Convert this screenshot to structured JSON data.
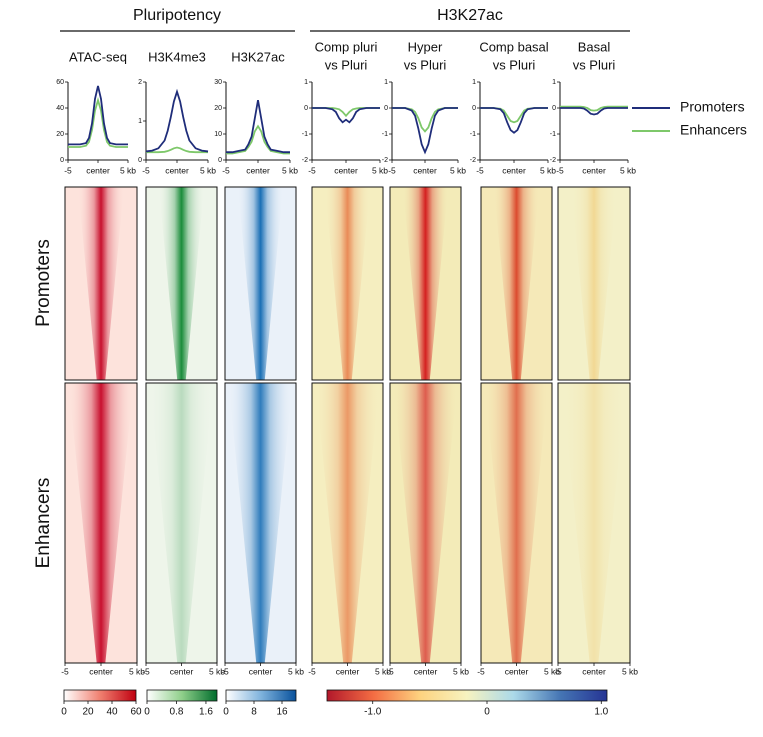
{
  "groups": [
    {
      "title": "Pluripotency"
    },
    {
      "title": "H3K27ac"
    }
  ],
  "row_labels": [
    "Promoters",
    "Enhancers"
  ],
  "chart_data": [
    {
      "type": "line",
      "title": [
        "ATAC-seq"
      ],
      "x": [
        -5,
        -4,
        -3,
        -2,
        -1.5,
        -1,
        -0.5,
        0,
        0.5,
        1,
        1.5,
        2,
        3,
        4,
        5
      ],
      "xlim": [
        -5,
        5
      ],
      "xticks": [
        {
          "value": -5,
          "label": "-5"
        },
        {
          "value": 0,
          "label": "center"
        },
        {
          "value": 5,
          "label": "5 kb"
        }
      ],
      "ylim": [
        0,
        60
      ],
      "yticks": [
        0,
        20,
        40,
        60
      ],
      "series": [
        {
          "name": "Promoters",
          "color": "#1f2d7a",
          "values": [
            12,
            12,
            12,
            13,
            17,
            28,
            47,
            57,
            47,
            28,
            17,
            13,
            12,
            12,
            12
          ]
        },
        {
          "name": "Enhancers",
          "color": "#7ec86a",
          "values": [
            10,
            10,
            10,
            11,
            14,
            23,
            38,
            46,
            38,
            23,
            14,
            11,
            10,
            10,
            10
          ]
        }
      ]
    },
    {
      "type": "line",
      "title": [
        "H3K4me3"
      ],
      "x": [
        -5,
        -4,
        -3,
        -2,
        -1.5,
        -1,
        -0.5,
        0,
        0.5,
        1,
        1.5,
        2,
        3,
        4,
        5
      ],
      "xlim": [
        -5,
        5
      ],
      "xticks": [
        {
          "value": -5,
          "label": "-5"
        },
        {
          "value": 0,
          "label": "center"
        },
        {
          "value": 5,
          "label": "5 kb"
        }
      ],
      "ylim": [
        0,
        2
      ],
      "yticks": [
        0,
        1,
        2
      ],
      "series": [
        {
          "name": "Promoters",
          "color": "#1f2d7a",
          "values": [
            0.22,
            0.24,
            0.3,
            0.5,
            0.75,
            1.1,
            1.5,
            1.75,
            1.5,
            1.1,
            0.75,
            0.5,
            0.3,
            0.24,
            0.22
          ]
        },
        {
          "name": "Enhancers",
          "color": "#7ec86a",
          "values": [
            0.2,
            0.2,
            0.2,
            0.21,
            0.23,
            0.26,
            0.3,
            0.32,
            0.3,
            0.26,
            0.23,
            0.21,
            0.2,
            0.2,
            0.2
          ]
        }
      ]
    },
    {
      "type": "line",
      "title": [
        "H3K27ac"
      ],
      "x": [
        -5,
        -4,
        -3,
        -2,
        -1.5,
        -1,
        -0.5,
        0,
        0.5,
        1,
        1.5,
        2,
        3,
        4,
        5
      ],
      "xlim": [
        -5,
        5
      ],
      "xticks": [
        {
          "value": -5,
          "label": "-5"
        },
        {
          "value": 0,
          "label": "center"
        },
        {
          "value": 5,
          "label": "5 kb"
        }
      ],
      "ylim": [
        0,
        30
      ],
      "yticks": [
        0,
        10,
        20,
        30
      ],
      "series": [
        {
          "name": "Promoters",
          "color": "#1f2d7a",
          "values": [
            3,
            3,
            3.5,
            4,
            6,
            9,
            16,
            23,
            16,
            9,
            6,
            4,
            3.5,
            3,
            3
          ]
        },
        {
          "name": "Enhancers",
          "color": "#7ec86a",
          "values": [
            2.5,
            2.5,
            3,
            3.5,
            5,
            7,
            11,
            13,
            11,
            7,
            5,
            3.5,
            3,
            2.5,
            2.5
          ]
        }
      ]
    },
    {
      "type": "line",
      "title": [
        "Comp pluri",
        "vs Pluri"
      ],
      "x": [
        -5,
        -4,
        -3,
        -2,
        -1.5,
        -1,
        -0.5,
        0,
        0.5,
        1,
        1.5,
        2,
        3,
        4,
        5
      ],
      "xlim": [
        -5,
        5
      ],
      "xticks": [
        {
          "value": -5,
          "label": "-5"
        },
        {
          "value": 0,
          "label": "center"
        },
        {
          "value": 5,
          "label": "5 kb"
        }
      ],
      "ylim": [
        -2,
        1
      ],
      "yticks": [
        -2,
        -1,
        0,
        1
      ],
      "series": [
        {
          "name": "Promoters",
          "color": "#1f2d7a",
          "values": [
            0,
            0,
            0,
            -0.05,
            -0.15,
            -0.4,
            -0.55,
            -0.45,
            -0.55,
            -0.4,
            -0.15,
            -0.05,
            0,
            0,
            0
          ]
        },
        {
          "name": "Enhancers",
          "color": "#7ec86a",
          "values": [
            0,
            0,
            0,
            0,
            -0.02,
            -0.05,
            -0.15,
            -0.3,
            -0.15,
            -0.05,
            -0.02,
            0,
            0,
            0,
            0
          ]
        }
      ]
    },
    {
      "type": "line",
      "title": [
        "Hyper",
        "vs Pluri"
      ],
      "x": [
        -5,
        -4,
        -3,
        -2,
        -1.5,
        -1,
        -0.5,
        0,
        0.5,
        1,
        1.5,
        2,
        3,
        4,
        5
      ],
      "xlim": [
        -5,
        5
      ],
      "xticks": [
        {
          "value": -5,
          "label": "-5"
        },
        {
          "value": 0,
          "label": "center"
        },
        {
          "value": 5,
          "label": "5 kb"
        }
      ],
      "ylim": [
        -2,
        1
      ],
      "yticks": [
        -2,
        -1,
        0,
        1
      ],
      "series": [
        {
          "name": "Promoters",
          "color": "#1f2d7a",
          "values": [
            0,
            0,
            0,
            -0.1,
            -0.3,
            -0.8,
            -1.4,
            -1.7,
            -1.4,
            -0.8,
            -0.3,
            -0.1,
            0,
            0,
            0
          ]
        },
        {
          "name": "Enhancers",
          "color": "#7ec86a",
          "values": [
            0,
            0,
            0,
            -0.05,
            -0.15,
            -0.4,
            -0.75,
            -0.9,
            -0.75,
            -0.4,
            -0.15,
            -0.05,
            0,
            0,
            0
          ]
        }
      ]
    },
    {
      "type": "line",
      "title": [
        "Comp basal",
        "vs Pluri"
      ],
      "x": [
        -5,
        -4,
        -3,
        -2,
        -1.5,
        -1,
        -0.5,
        0,
        0.5,
        1,
        1.5,
        2,
        3,
        4,
        5
      ],
      "xlim": [
        -5,
        5
      ],
      "xticks": [
        {
          "value": -5,
          "label": "-5"
        },
        {
          "value": 0,
          "label": "center"
        },
        {
          "value": 5,
          "label": "5 kb"
        }
      ],
      "ylim": [
        -2,
        1
      ],
      "yticks": [
        -2,
        -1,
        0,
        1
      ],
      "series": [
        {
          "name": "Promoters",
          "color": "#1f2d7a",
          "values": [
            0,
            0,
            0,
            -0.05,
            -0.2,
            -0.55,
            -0.85,
            -0.95,
            -0.85,
            -0.55,
            -0.2,
            -0.05,
            0,
            0,
            0
          ]
        },
        {
          "name": "Enhancers",
          "color": "#7ec86a",
          "values": [
            0,
            0,
            0,
            -0.03,
            -0.1,
            -0.3,
            -0.5,
            -0.55,
            -0.5,
            -0.3,
            -0.1,
            -0.03,
            0,
            0,
            0
          ]
        }
      ]
    },
    {
      "type": "line",
      "title": [
        "Basal",
        "vs Pluri"
      ],
      "x": [
        -5,
        -4,
        -3,
        -2,
        -1.5,
        -1,
        -0.5,
        0,
        0.5,
        1,
        1.5,
        2,
        3,
        4,
        5
      ],
      "xlim": [
        -5,
        5
      ],
      "xticks": [
        {
          "value": -5,
          "label": "-5"
        },
        {
          "value": 0,
          "label": "center"
        },
        {
          "value": 5,
          "label": "5 kb"
        }
      ],
      "ylim": [
        -2,
        1
      ],
      "yticks": [
        -2,
        -1,
        0,
        1
      ],
      "series": [
        {
          "name": "Promoters",
          "color": "#1f2d7a",
          "values": [
            0,
            0,
            0,
            0,
            -0.02,
            -0.1,
            -0.22,
            -0.25,
            -0.22,
            -0.1,
            -0.02,
            0,
            0,
            0,
            0
          ]
        },
        {
          "name": "Enhancers",
          "color": "#7ec86a",
          "values": [
            0.05,
            0.05,
            0.05,
            0.05,
            0.04,
            0,
            -0.08,
            -0.1,
            -0.08,
            0,
            0.04,
            0.05,
            0.05,
            0.05,
            0.05
          ]
        }
      ]
    }
  ],
  "colorbars": [
    {
      "lim": [
        0,
        60
      ],
      "ticks": [
        0,
        20,
        40,
        60
      ],
      "colors": [
        "#ffffff",
        "#f08070",
        "#c00010"
      ]
    },
    {
      "lim": [
        0,
        1.9
      ],
      "ticks": [
        0,
        0.8,
        1.6
      ],
      "colors": [
        "#ffffff",
        "#8fcf8a",
        "#006d2c"
      ]
    },
    {
      "lim": [
        0,
        20
      ],
      "ticks": [
        0,
        8,
        16
      ],
      "colors": [
        "#ffffff",
        "#7fb3dd",
        "#08519c"
      ]
    },
    {
      "lim": [
        -1.4,
        1.05
      ],
      "ticks": [
        {
          "value": -1,
          "label": "-1.0"
        },
        0,
        {
          "value": 1,
          "label": "1.0"
        }
      ],
      "colors": [
        "#b2182b",
        "#f46d43",
        "#fdd380",
        "#f7f3c0",
        "#abd9e9",
        "#4575b4",
        "#253494"
      ]
    }
  ]
}
